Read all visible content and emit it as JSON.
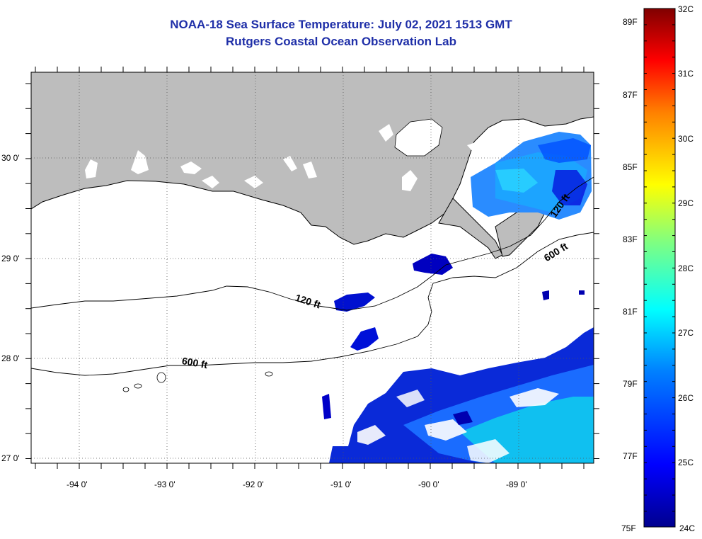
{
  "title": {
    "line1": "NOAA-18 Sea Surface Temperature:  July 02, 2021 1513 GMT",
    "line2": "Rutgers Coastal Ocean Observation Lab"
  },
  "map": {
    "lon_labels": [
      "-94 0'",
      "-93 0'",
      "-92 0'",
      "-91 0'",
      "-90 0'",
      "-89 0'"
    ],
    "lat_labels": [
      "30 0'",
      "29 0'",
      "28 0'",
      "27 0'"
    ],
    "contour_labels": [
      "120 ft",
      "600 ft",
      "120 ft",
      "600 ft"
    ],
    "colors": {
      "land": "#bdbdbd",
      "ocean_no_data": "#ffffff",
      "coast": "#000000"
    }
  },
  "colorbar": {
    "celsius_labels": [
      "32C",
      "31C",
      "30C",
      "29C",
      "28C",
      "27C",
      "26C",
      "25C",
      "24C"
    ],
    "fahrenheit_labels": [
      "89F",
      "87F",
      "85F",
      "83F",
      "81F",
      "79F",
      "77F",
      "75F"
    ],
    "range_c": [
      24,
      32
    ],
    "colors_low_to_high": [
      "#00008f",
      "#0000ff",
      "#0080ff",
      "#00ffff",
      "#80ff80",
      "#ffff00",
      "#ff8000",
      "#ff0000",
      "#800000"
    ]
  }
}
